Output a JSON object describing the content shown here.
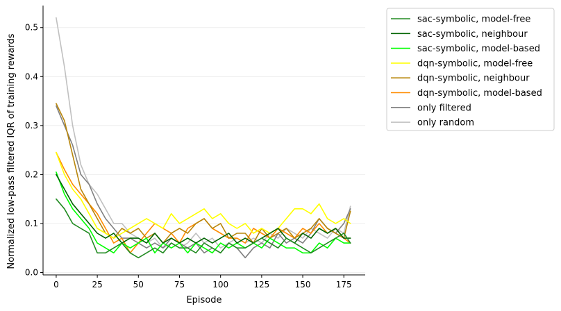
{
  "chart_data": {
    "type": "line",
    "title": "",
    "xlabel": "Episode",
    "ylabel": "Normalized low-pass filtered IQR of training rewards",
    "xlim": [
      -8,
      188
    ],
    "ylim": [
      -0.005,
      0.545
    ],
    "xticks": [
      0,
      25,
      50,
      75,
      100,
      125,
      150,
      175
    ],
    "yticks": [
      0.0,
      0.1,
      0.2,
      0.3,
      0.4,
      0.5
    ],
    "xtick_labels": [
      "0",
      "25",
      "50",
      "75",
      "100",
      "125",
      "150",
      "175"
    ],
    "ytick_labels": [
      "0.0",
      "0.1",
      "0.2",
      "0.3",
      "0.4",
      "0.5"
    ],
    "grid": "horizontal",
    "legend_position": "outside-top-right",
    "x": [
      0,
      5,
      10,
      15,
      20,
      25,
      30,
      35,
      40,
      45,
      50,
      55,
      60,
      65,
      70,
      75,
      80,
      85,
      90,
      95,
      100,
      105,
      110,
      115,
      120,
      125,
      130,
      135,
      140,
      145,
      150,
      155,
      160,
      165,
      170,
      175,
      179
    ],
    "series": [
      {
        "name": "sac-symbolic, model-free",
        "color": "#228b22",
        "values": [
          0.15,
          0.13,
          0.1,
          0.09,
          0.08,
          0.04,
          0.04,
          0.05,
          0.06,
          0.04,
          0.03,
          0.04,
          0.05,
          0.04,
          0.06,
          0.05,
          0.05,
          0.04,
          0.06,
          0.05,
          0.04,
          0.06,
          0.05,
          0.05,
          0.06,
          0.07,
          0.06,
          0.05,
          0.07,
          0.06,
          0.05,
          0.04,
          0.05,
          0.06,
          0.07,
          0.08,
          0.06
        ]
      },
      {
        "name": "sac-symbolic, neighbour",
        "color": "#006400",
        "values": [
          0.2,
          0.17,
          0.14,
          0.12,
          0.1,
          0.08,
          0.07,
          0.08,
          0.06,
          0.07,
          0.07,
          0.06,
          0.08,
          0.06,
          0.07,
          0.06,
          0.07,
          0.06,
          0.07,
          0.06,
          0.07,
          0.08,
          0.06,
          0.07,
          0.06,
          0.07,
          0.08,
          0.09,
          0.07,
          0.06,
          0.08,
          0.07,
          0.09,
          0.08,
          0.09,
          0.07,
          0.07
        ]
      },
      {
        "name": "sac-symbolic, model-based",
        "color": "#00ff00",
        "values": [
          0.205,
          0.16,
          0.13,
          0.11,
          0.09,
          0.06,
          0.05,
          0.04,
          0.06,
          0.05,
          0.06,
          0.07,
          0.04,
          0.06,
          0.05,
          0.06,
          0.04,
          0.06,
          0.05,
          0.04,
          0.06,
          0.05,
          0.06,
          0.05,
          0.06,
          0.05,
          0.07,
          0.06,
          0.05,
          0.05,
          0.04,
          0.04,
          0.06,
          0.05,
          0.07,
          0.06,
          0.06
        ]
      },
      {
        "name": "dqn-symbolic, model-free",
        "color": "#ffff00",
        "values": [
          0.245,
          0.2,
          0.17,
          0.15,
          0.12,
          0.09,
          0.08,
          0.07,
          0.08,
          0.09,
          0.1,
          0.11,
          0.1,
          0.09,
          0.12,
          0.1,
          0.11,
          0.12,
          0.13,
          0.11,
          0.12,
          0.1,
          0.09,
          0.1,
          0.08,
          0.09,
          0.08,
          0.09,
          0.11,
          0.13,
          0.13,
          0.12,
          0.14,
          0.11,
          0.1,
          0.11,
          0.1
        ]
      },
      {
        "name": "dqn-symbolic, neighbour",
        "color": "#b8860b",
        "values": [
          0.345,
          0.31,
          0.24,
          0.17,
          0.14,
          0.11,
          0.08,
          0.07,
          0.09,
          0.08,
          0.09,
          0.07,
          0.08,
          0.06,
          0.08,
          0.09,
          0.08,
          0.1,
          0.11,
          0.09,
          0.1,
          0.07,
          0.08,
          0.08,
          0.06,
          0.09,
          0.07,
          0.08,
          0.09,
          0.07,
          0.08,
          0.09,
          0.11,
          0.09,
          0.08,
          0.07,
          0.125
        ]
      },
      {
        "name": "dqn-symbolic, model-based",
        "color": "#ff8c00",
        "values": [
          0.245,
          0.21,
          0.18,
          0.16,
          0.14,
          0.12,
          0.09,
          0.06,
          0.07,
          0.04,
          0.06,
          0.08,
          0.1,
          0.09,
          0.08,
          0.06,
          0.09,
          0.1,
          0.11,
          0.09,
          0.08,
          0.07,
          0.07,
          0.06,
          0.09,
          0.08,
          0.07,
          0.09,
          0.08,
          0.07,
          0.09,
          0.08,
          0.1,
          0.08,
          0.09,
          0.07,
          0.06
        ]
      },
      {
        "name": "only filtered",
        "color": "#808080",
        "values": [
          0.34,
          0.3,
          0.26,
          0.2,
          0.18,
          0.14,
          0.11,
          0.09,
          0.07,
          0.07,
          0.06,
          0.05,
          0.06,
          0.05,
          0.07,
          0.06,
          0.05,
          0.06,
          0.04,
          0.05,
          0.04,
          0.06,
          0.05,
          0.03,
          0.05,
          0.06,
          0.05,
          0.08,
          0.06,
          0.07,
          0.06,
          0.08,
          0.11,
          0.09,
          0.08,
          0.1,
          0.13
        ]
      },
      {
        "name": "only random",
        "color": "#c0c0c0",
        "values": [
          0.52,
          0.42,
          0.3,
          0.22,
          0.18,
          0.16,
          0.13,
          0.1,
          0.1,
          0.08,
          0.07,
          0.06,
          0.07,
          0.05,
          0.06,
          0.05,
          0.06,
          0.08,
          0.06,
          0.07,
          0.05,
          0.06,
          0.07,
          0.06,
          0.07,
          0.06,
          0.08,
          0.07,
          0.09,
          0.08,
          0.07,
          0.09,
          0.08,
          0.07,
          0.09,
          0.08,
          0.135
        ]
      }
    ]
  }
}
